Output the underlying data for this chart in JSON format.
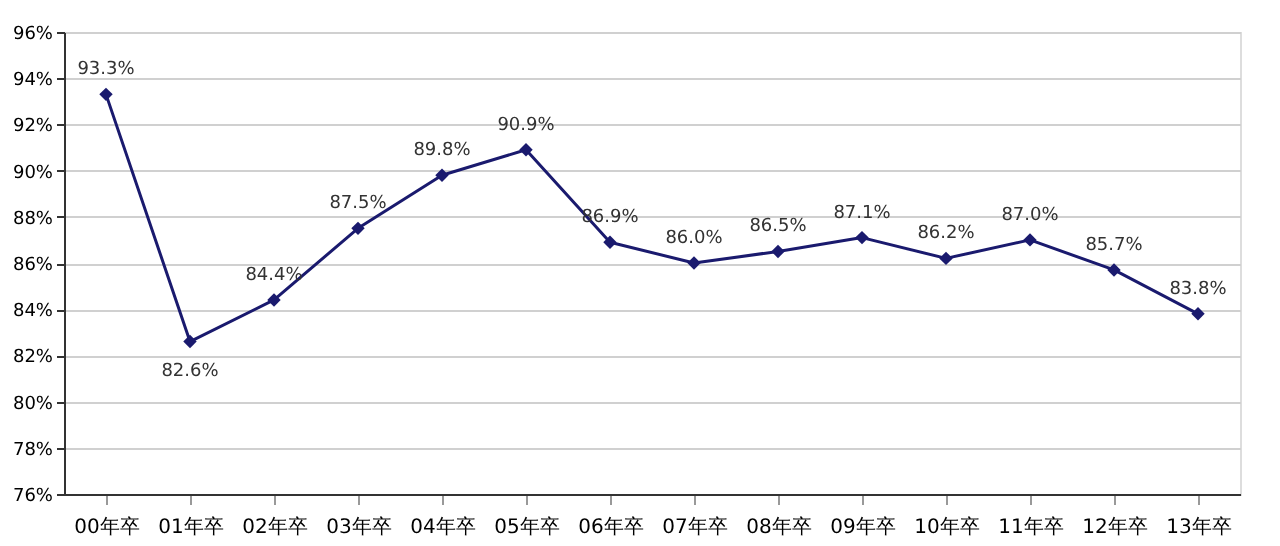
{
  "chart_data": {
    "type": "line",
    "categories": [
      "00年卒",
      "01年卒",
      "02年卒",
      "03年卒",
      "04年卒",
      "05年卒",
      "06年卒",
      "07年卒",
      "08年卒",
      "09年卒",
      "10年卒",
      "11年卒",
      "12年卒",
      "13年卒"
    ],
    "series": [
      {
        "color": "#1a1a6e",
        "values": [
          93.3,
          82.6,
          84.4,
          87.5,
          89.8,
          90.9,
          86.9,
          86.0,
          86.5,
          87.1,
          86.2,
          87.0,
          85.7,
          83.8
        ],
        "value_labels": [
          "93.3%",
          "82.6%",
          "84.4%",
          "87.5%",
          "89.8%",
          "90.9%",
          "86.9%",
          "86.0%",
          "86.5%",
          "87.1%",
          "86.2%",
          "87.0%",
          "85.7%",
          "83.8%"
        ]
      }
    ],
    "ylim": [
      76,
      96
    ],
    "yticks": [
      {
        "value": 76,
        "label": "76%"
      },
      {
        "value": 78,
        "label": "78%"
      },
      {
        "value": 80,
        "label": "80%"
      },
      {
        "value": 82,
        "label": "82%"
      },
      {
        "value": 84,
        "label": "84%"
      },
      {
        "value": 86,
        "label": "86%"
      },
      {
        "value": 88,
        "label": "88%"
      },
      {
        "value": 90,
        "label": "90%"
      },
      {
        "value": 92,
        "label": "92%"
      },
      {
        "value": 94,
        "label": "94%"
      },
      {
        "value": 96,
        "label": "96%"
      }
    ],
    "grid": "y",
    "marker": "diamond",
    "line_style": "solid"
  }
}
